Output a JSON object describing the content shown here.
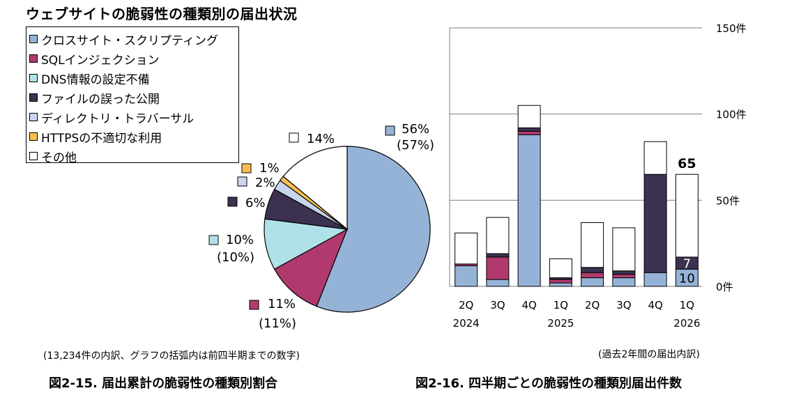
{
  "title": "ウェブサイトの脆弱性の種類別の届出状況",
  "colors": {
    "xss": "#95b3d7",
    "sql": "#b03a6e",
    "dns": "#aee2e8",
    "file": "#3c3150",
    "traversal": "#c6d6ec",
    "https": "#fbbf4f",
    "other": "#ffffff"
  },
  "legend": [
    {
      "key": "xss",
      "label": "クロスサイト・スクリプティング"
    },
    {
      "key": "sql",
      "label": "SQLインジェクション"
    },
    {
      "key": "dns",
      "label": "DNS情報の設定不備"
    },
    {
      "key": "file",
      "label": "ファイルの誤った公開"
    },
    {
      "key": "traversal",
      "label": "ディレクトリ・トラバーサル"
    },
    {
      "key": "https",
      "label": "HTTPSの不適切な利用"
    },
    {
      "key": "other",
      "label": "その他"
    }
  ],
  "note_left": "(13,234件の内訳、グラフの括弧内は前四半期までの数字)",
  "note_right": "(過去2年間の届出内訳)",
  "caption_left": "図2-15. 届出累計の脆弱性の種類別割合",
  "caption_right": "図2-16. 四半期ごとの脆弱性の種類別届出件数",
  "chart_data": [
    {
      "type": "pie",
      "slices": [
        {
          "key": "xss",
          "value": 56,
          "label": "56%",
          "prev": "(57%)"
        },
        {
          "key": "sql",
          "value": 11,
          "label": "11%",
          "prev": "(11%)"
        },
        {
          "key": "dns",
          "value": 10,
          "label": "10%",
          "prev": "(10%)"
        },
        {
          "key": "file",
          "value": 6,
          "label": "6%",
          "prev": ""
        },
        {
          "key": "traversal",
          "value": 2,
          "label": "2%",
          "prev": ""
        },
        {
          "key": "https",
          "value": 1,
          "label": "1%",
          "prev": ""
        },
        {
          "key": "other",
          "value": 14,
          "label": "14%",
          "prev": ""
        }
      ]
    },
    {
      "type": "bar",
      "stacked": true,
      "categories": [
        "2Q",
        "3Q",
        "4Q",
        "1Q",
        "2Q",
        "3Q",
        "4Q",
        "1Q"
      ],
      "year_labels": [
        "2024",
        "",
        "",
        "2025",
        "",
        "",
        "",
        "2026"
      ],
      "ylim": [
        0,
        150
      ],
      "yticks": [
        {
          "value": 0,
          "label": "0件"
        },
        {
          "value": 50,
          "label": "50件"
        },
        {
          "value": 100,
          "label": "100件"
        },
        {
          "value": 150,
          "label": "150件"
        }
      ],
      "grid": true,
      "series": [
        {
          "key": "xss",
          "values": [
            12,
            4,
            88,
            2,
            5,
            5,
            8,
            10
          ]
        },
        {
          "key": "sql",
          "values": [
            1,
            13,
            2,
            2,
            3,
            2,
            0,
            0
          ]
        },
        {
          "key": "dns",
          "values": [
            0,
            0,
            0,
            0,
            0,
            0,
            0,
            0
          ]
        },
        {
          "key": "file",
          "values": [
            0,
            2,
            2,
            1,
            3,
            2,
            57,
            7
          ]
        },
        {
          "key": "traversal",
          "values": [
            0,
            0,
            0,
            0,
            0,
            0,
            0,
            0
          ]
        },
        {
          "key": "https",
          "values": [
            0,
            0,
            0,
            0,
            0,
            0,
            0,
            0
          ]
        },
        {
          "key": "other",
          "values": [
            18,
            21,
            13,
            11,
            26,
            25,
            19,
            48
          ]
        }
      ],
      "segment_labels": [
        {
          "category": 7,
          "key": "xss",
          "text": "10"
        },
        {
          "category": 7,
          "key": "file",
          "text": "7"
        }
      ],
      "total_labels": [
        {
          "category": 7,
          "text": "65"
        }
      ]
    }
  ]
}
